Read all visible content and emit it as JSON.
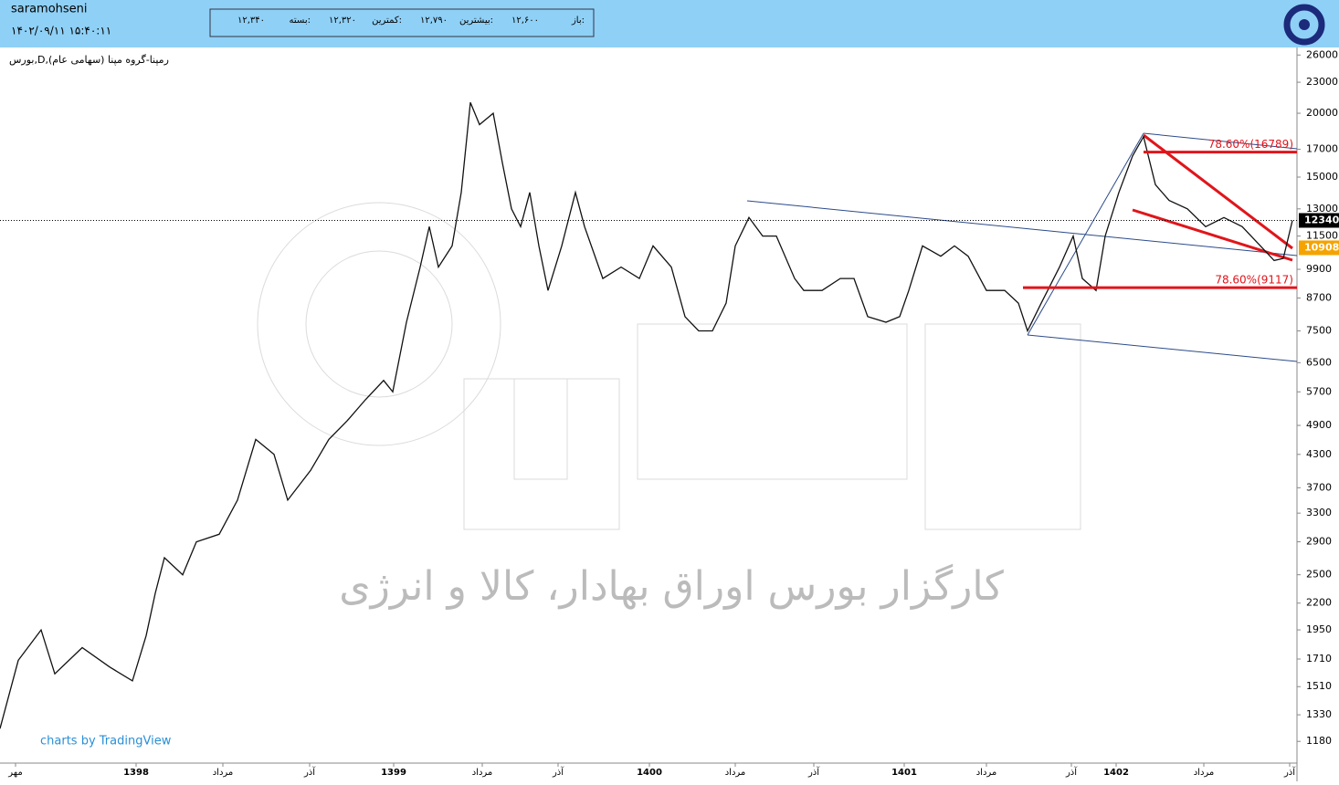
{
  "header": {
    "user": "saramohseni",
    "datetime": "۱۴۰۲/۰۹/۱۱ ۱۵:۴۰:۱۱",
    "quote": [
      {
        "label": "باز:",
        "value": "۱۲,۶۰۰"
      },
      {
        "label": "بیشترین:",
        "value": "۱۲,۷۹۰"
      },
      {
        "label": "کمترین:",
        "value": "۱۲,۳۲۰"
      },
      {
        "label": "بسته:",
        "value": "۱۲,۳۴۰"
      }
    ]
  },
  "chart_data": {
    "type": "line",
    "title": "بورس,D,(رمپنا-گروه مپنا (سهامی عام",
    "watermark": "کارگزار بورس اوراق بهادار، کالا و انرژی",
    "credit": "charts by TradingView",
    "log_scale": true,
    "series": [
      {
        "color": "#111111",
        "x": [
          0,
          2,
          4.5,
          6,
          9,
          12,
          14.5,
          16,
          17,
          18,
          20,
          21.5,
          24,
          26,
          28,
          30,
          31.5,
          34,
          36,
          38,
          40,
          42,
          43,
          44.5,
          46,
          47,
          48,
          49.5,
          50.5,
          51.5,
          52.5,
          54,
          55,
          56,
          57,
          58,
          59,
          60,
          61.5,
          63,
          64,
          66,
          68,
          70,
          71.5,
          73.5,
          75,
          76.5,
          78,
          79.5,
          80.5,
          82,
          83.5,
          85,
          87,
          88,
          90,
          92,
          93.5,
          95,
          97,
          98.5,
          99.5,
          101,
          103,
          104.5,
          106,
          108,
          110,
          111.5,
          112.5,
          114,
          116,
          117.5,
          118.5,
          120,
          121,
          122.5,
          124,
          125.2,
          126.5,
          128,
          130,
          132,
          134,
          136,
          138,
          139.5,
          140.5,
          141.5
        ],
        "values": [
          1250,
          1700,
          1950,
          1600,
          1800,
          1650,
          1550,
          1900,
          2300,
          2700,
          2500,
          2900,
          3000,
          3500,
          4600,
          4300,
          3500,
          4000,
          4600,
          5000,
          5500,
          6000,
          5700,
          7800,
          10000,
          12000,
          10000,
          11000,
          14000,
          21000,
          19000,
          20000,
          16000,
          13000,
          12000,
          14000,
          11000,
          9000,
          11000,
          14000,
          12000,
          9500,
          10000,
          9500,
          11000,
          10000,
          8000,
          7500,
          7500,
          8500,
          11000,
          12500,
          11500,
          11500,
          9500,
          9000,
          9000,
          9500,
          9500,
          8000,
          7800,
          8000,
          9000,
          11000,
          10500,
          11000,
          10500,
          9000,
          9000,
          8500,
          7500,
          8500,
          10000,
          11500,
          9500,
          9000,
          11500,
          14000,
          16500,
          18000,
          14500,
          13500,
          13000,
          12000,
          12500,
          12000,
          11000,
          10300,
          10400,
          12340
        ]
      }
    ],
    "xlim": [
      0,
      142
    ],
    "xticks": [
      {
        "value": 1.7,
        "label": "مهر"
      },
      {
        "value": 14.9,
        "label": "1398"
      },
      {
        "value": 24.4,
        "label": "مرداد"
      },
      {
        "value": 33.9,
        "label": "آذر"
      },
      {
        "value": 43.1,
        "label": "1399"
      },
      {
        "value": 52.8,
        "label": "مرداد"
      },
      {
        "value": 61.1,
        "label": "آذر"
      },
      {
        "value": 71.1,
        "label": "1400"
      },
      {
        "value": 80.5,
        "label": "مرداد"
      },
      {
        "value": 89.1,
        "label": "آذر"
      },
      {
        "value": 99.0,
        "label": "1401"
      },
      {
        "value": 108.0,
        "label": "مرداد"
      },
      {
        "value": 117.3,
        "label": "آذر"
      },
      {
        "value": 122.2,
        "label": "1402"
      },
      {
        "value": 131.8,
        "label": "مرداد"
      },
      {
        "value": 141.2,
        "label": "آذر"
      }
    ],
    "ylim": [
      1070,
      26900
    ],
    "yticks": [
      1180,
      1330,
      1510,
      1710,
      1950,
      2200,
      2500,
      2900,
      3300,
      3700,
      4300,
      4900,
      5700,
      6500,
      7500,
      8700,
      9900,
      11500,
      13000,
      15000,
      17000,
      20000,
      23000,
      26000
    ],
    "last_price": {
      "value": 12340,
      "color": "#000000"
    },
    "marker_price": {
      "value": 10908,
      "color": "#f5a300"
    },
    "annotations": [
      {
        "label": "78.60%(16789)",
        "value": 16789,
        "color": "#e0151b"
      },
      {
        "label": "78.60%(9117)",
        "value": 9117,
        "color": "#e0151b"
      }
    ]
  }
}
